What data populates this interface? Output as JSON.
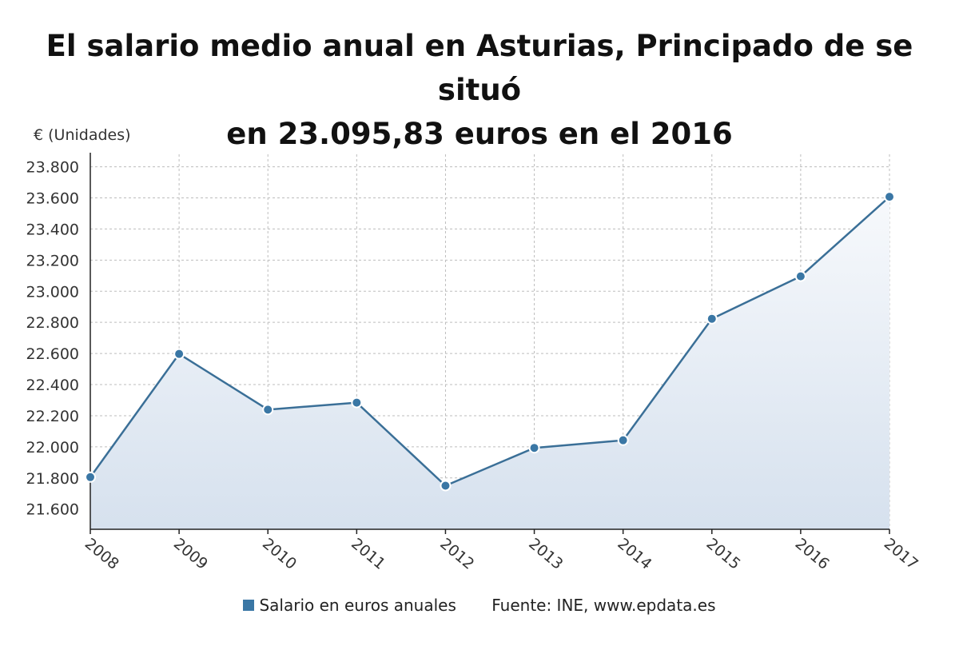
{
  "title_line1": "El salario medio anual en Asturias, Principado de se situó",
  "title_line2": "en 23.095,83 euros en el 2016",
  "legend": {
    "series_label": "Salario en euros anuales",
    "source": "Fuente: INE, www.epdata.es"
  },
  "chart_data": {
    "type": "area",
    "ylabel": "€ (Unidades)",
    "x": [
      "2008",
      "2009",
      "2010",
      "2011",
      "2012",
      "2013",
      "2014",
      "2015",
      "2016",
      "2017"
    ],
    "series": [
      {
        "name": "Salario en euros anuales",
        "values": [
          21805,
          22597,
          22239,
          22284,
          21750,
          21993,
          22042,
          22823,
          23095.83,
          23607
        ]
      }
    ],
    "yticks": [
      21600,
      21800,
      22000,
      22200,
      22400,
      22600,
      22800,
      23000,
      23200,
      23400,
      23600,
      23800
    ],
    "ytick_labels": [
      "21.600",
      "21.800",
      "22.000",
      "22.200",
      "22.400",
      "22.600",
      "22.800",
      "23.000",
      "23.200",
      "23.400",
      "23.600",
      "23.800"
    ],
    "ylim": [
      21470,
      23880
    ],
    "grid": true,
    "legend_position": "bottom",
    "colors": {
      "line": "#3a6f97",
      "marker": "#3a77a5",
      "fill_top": "#f7f9fc",
      "fill_bottom": "#d6e1ee",
      "grid": "#bdbdbd"
    }
  }
}
